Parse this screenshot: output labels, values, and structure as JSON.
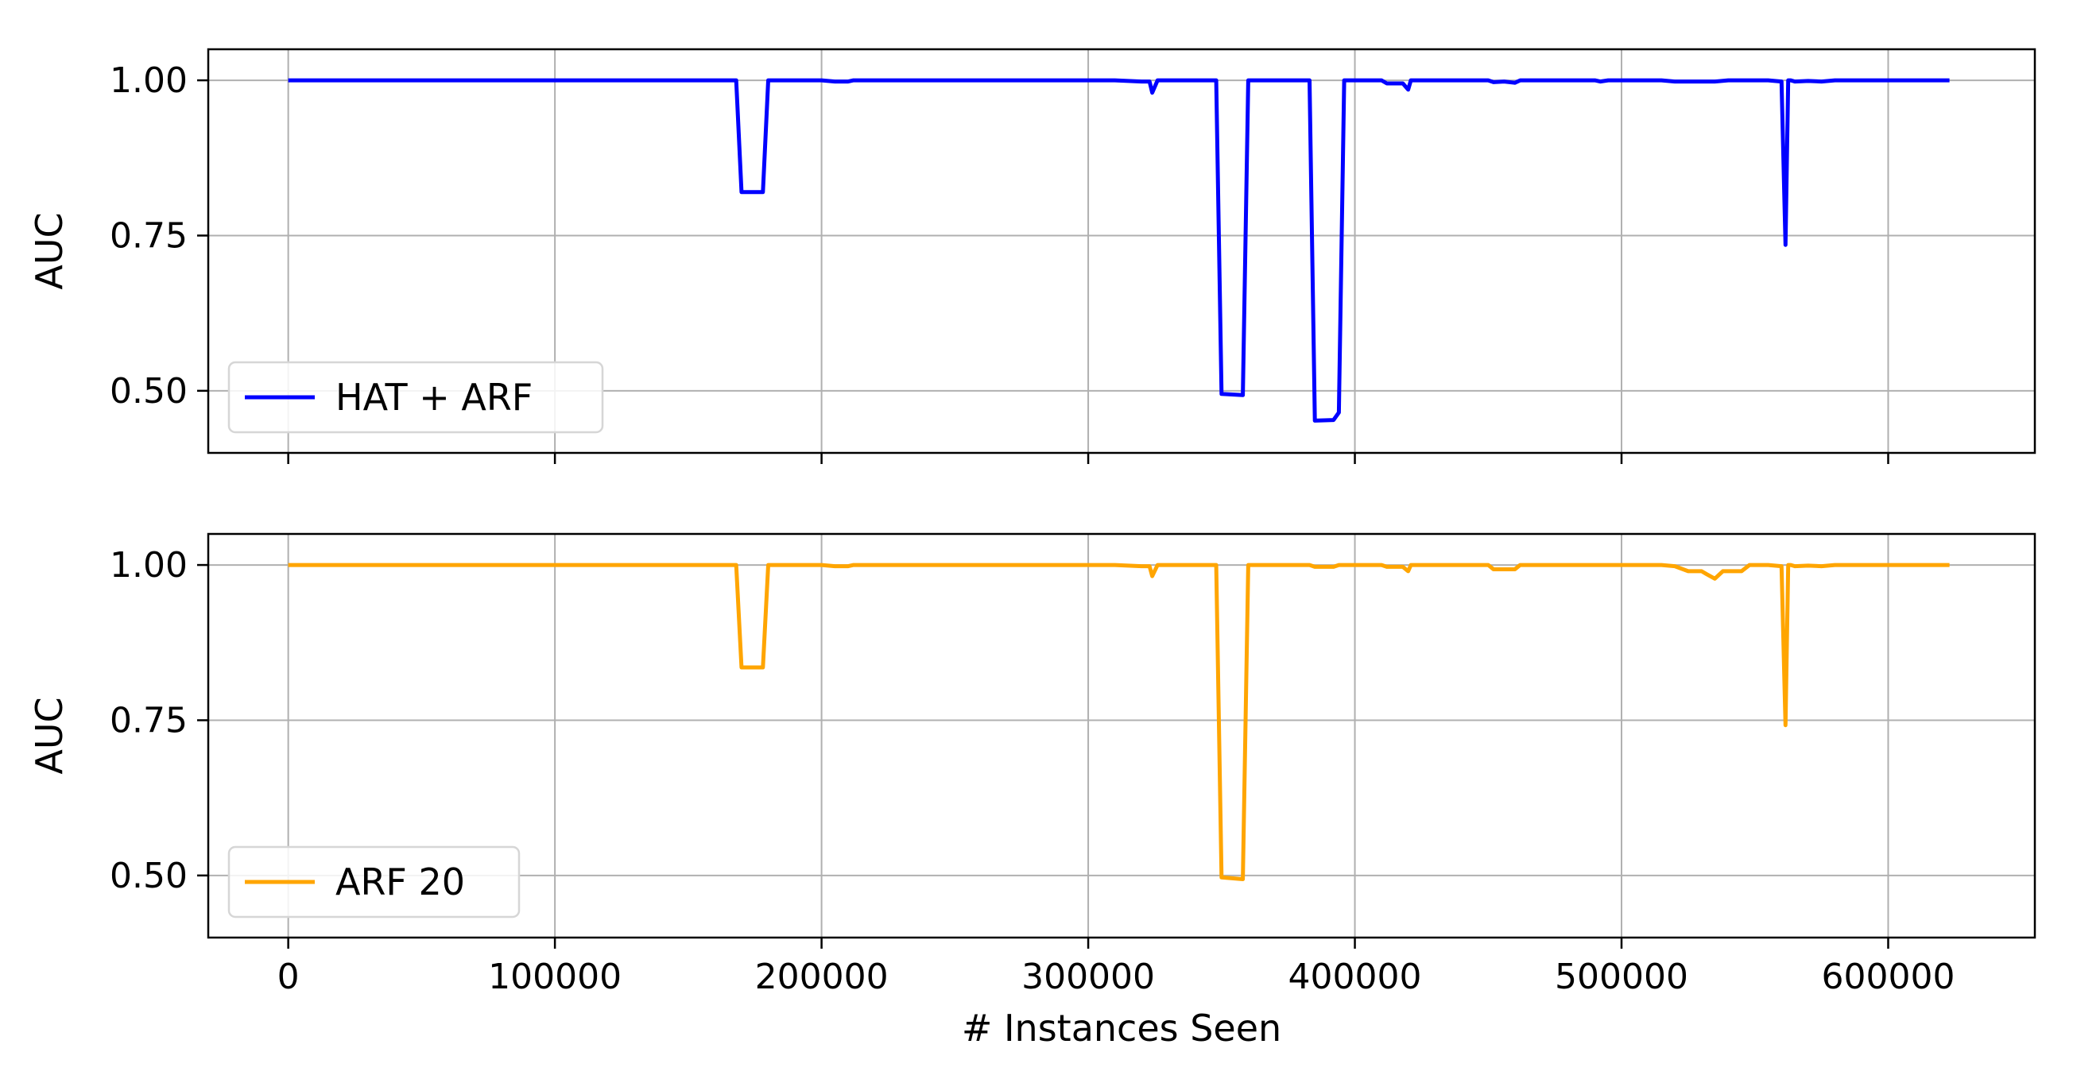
{
  "chart_data": [
    {
      "type": "line",
      "ylabel": "AUC",
      "xlabel": "",
      "xlim": [
        -30000,
        655000
      ],
      "ylim": [
        0.4,
        1.05
      ],
      "xticks": [
        0,
        100000,
        200000,
        300000,
        400000,
        500000,
        600000
      ],
      "xtick_labels": [
        "",
        "",
        "",
        "",
        "",
        "",
        ""
      ],
      "yticks": [
        0.5,
        0.75,
        1.0
      ],
      "ytick_labels": [
        "0.50",
        "0.75",
        "1.00"
      ],
      "grid": true,
      "legend": "lower-left",
      "series": [
        {
          "name": "HAT + ARF",
          "color": "#0000ff",
          "x": [
            0,
            168000,
            170000,
            178000,
            180000,
            200000,
            205000,
            210000,
            212000,
            310000,
            320000,
            323000,
            324000,
            326000,
            335000,
            348000,
            350000,
            358000,
            360000,
            383000,
            385000,
            392000,
            394000,
            396000,
            398000,
            410000,
            412000,
            418000,
            420000,
            421000,
            423000,
            450000,
            452000,
            456000,
            460000,
            462000,
            490000,
            492000,
            495000,
            515000,
            520000,
            535000,
            540000,
            555000,
            560000,
            561500,
            562500,
            563500,
            565000,
            570000,
            575000,
            580000,
            590000,
            623000
          ],
          "values": [
            1.0,
            1.0,
            0.82,
            0.82,
            1.0,
            1.0,
            0.998,
            0.998,
            1.0,
            1.0,
            0.998,
            0.998,
            0.98,
            1.0,
            1.0,
            1.0,
            0.495,
            0.493,
            1.0,
            1.0,
            0.452,
            0.453,
            0.465,
            1.0,
            1.0,
            1.0,
            0.995,
            0.995,
            0.985,
            1.0,
            1.0,
            1.0,
            0.997,
            0.998,
            0.996,
            1.0,
            1.0,
            0.998,
            1.0,
            1.0,
            0.998,
            0.998,
            1.0,
            1.0,
            0.998,
            0.735,
            1.0,
            1.0,
            0.998,
            0.999,
            0.998,
            1.0,
            1.0,
            1.0
          ]
        }
      ]
    },
    {
      "type": "line",
      "ylabel": "AUC",
      "xlabel": "# Instances Seen",
      "xlim": [
        -30000,
        655000
      ],
      "ylim": [
        0.4,
        1.05
      ],
      "xticks": [
        0,
        100000,
        200000,
        300000,
        400000,
        500000,
        600000
      ],
      "xtick_labels": [
        "0",
        "100000",
        "200000",
        "300000",
        "400000",
        "500000",
        "600000"
      ],
      "yticks": [
        0.5,
        0.75,
        1.0
      ],
      "ytick_labels": [
        "0.50",
        "0.75",
        "1.00"
      ],
      "grid": true,
      "legend": "lower-left",
      "series": [
        {
          "name": "ARF 20",
          "color": "#ffa500",
          "x": [
            0,
            168000,
            170000,
            178000,
            180000,
            200000,
            205000,
            210000,
            212000,
            310000,
            320000,
            323000,
            324000,
            326000,
            335000,
            348000,
            350000,
            358000,
            360000,
            383000,
            385000,
            392000,
            394000,
            410000,
            412000,
            418000,
            420000,
            421000,
            423000,
            450000,
            452000,
            460000,
            462000,
            515000,
            520000,
            525000,
            530000,
            532000,
            535000,
            538000,
            545000,
            548000,
            555000,
            560000,
            561500,
            562500,
            563500,
            565000,
            570000,
            575000,
            580000,
            623000
          ],
          "values": [
            1.0,
            1.0,
            0.835,
            0.835,
            1.0,
            1.0,
            0.998,
            0.998,
            1.0,
            1.0,
            0.998,
            0.998,
            0.982,
            1.0,
            1.0,
            1.0,
            0.497,
            0.494,
            1.0,
            1.0,
            0.997,
            0.997,
            1.0,
            1.0,
            0.997,
            0.997,
            0.99,
            1.0,
            1.0,
            1.0,
            0.993,
            0.993,
            1.0,
            1.0,
            0.998,
            0.99,
            0.99,
            0.985,
            0.978,
            0.99,
            0.99,
            1.0,
            1.0,
            0.998,
            0.742,
            1.0,
            1.0,
            0.998,
            0.999,
            0.998,
            1.0,
            1.0
          ]
        }
      ]
    }
  ]
}
